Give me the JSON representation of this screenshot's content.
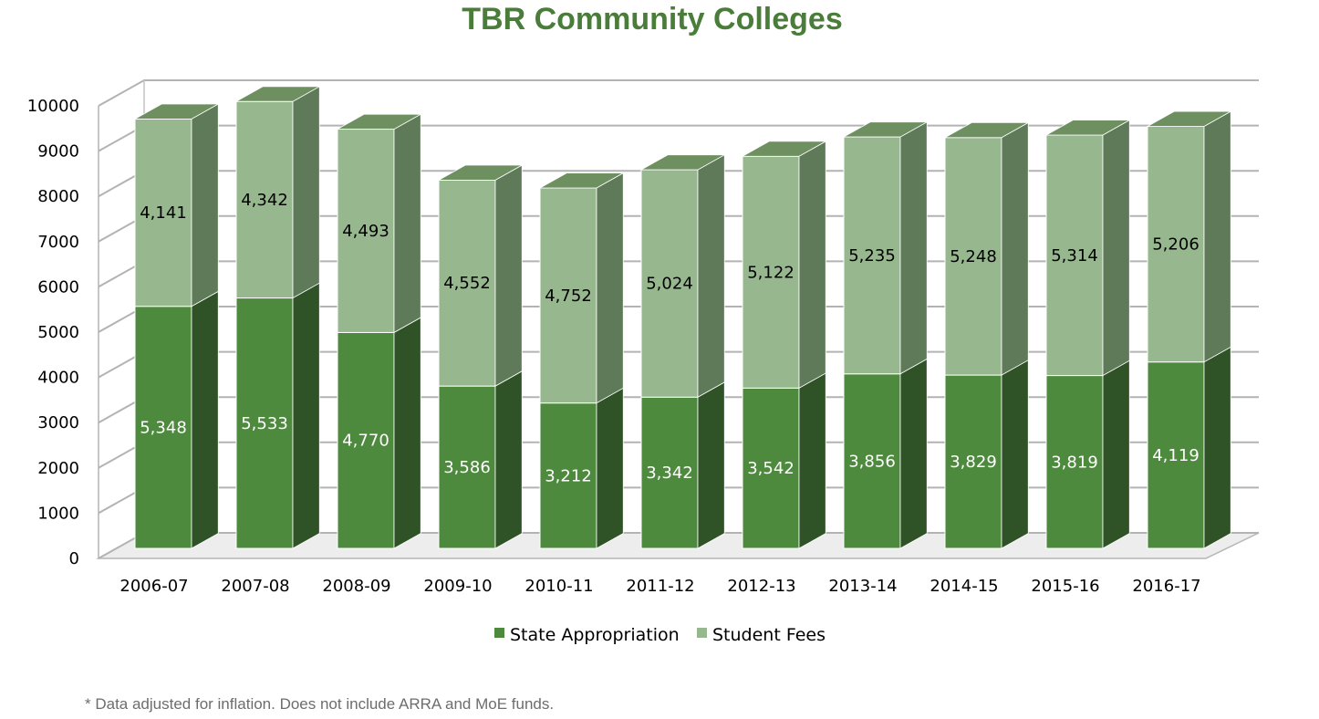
{
  "chart_data": {
    "type": "bar",
    "stacked": true,
    "three_d": true,
    "title": "TBR Community Colleges",
    "categories": [
      "2006-07",
      "2007-08",
      "2008-09",
      "2009-10",
      "2010-11",
      "2011-12",
      "2012-13",
      "2013-14",
      "2014-15",
      "2015-16",
      "2016-17"
    ],
    "series": [
      {
        "name": "State Appropriation",
        "values": [
          5348,
          5533,
          4770,
          3586,
          3212,
          3342,
          3542,
          3856,
          3829,
          3819,
          4119
        ],
        "labels": [
          "5,348",
          "5,533",
          "4,770",
          "3,586",
          "3,212",
          "3,342",
          "3,542",
          "3,856",
          "3,829",
          "3,819",
          "4,119"
        ],
        "color": "#4e8a3e",
        "side_color": "#2f5326",
        "top_color": "#6e8f60",
        "label_color": "#ffffff"
      },
      {
        "name": "Student Fees",
        "values": [
          4141,
          4342,
          4493,
          4552,
          4752,
          5024,
          5122,
          5235,
          5248,
          5314,
          5206
        ],
        "labels": [
          "4,141",
          "4,342",
          "4,493",
          "4,552",
          "4,752",
          "5,024",
          "5,122",
          "5,235",
          "5,248",
          "5,314",
          "5,206"
        ],
        "color": "#97b88e",
        "side_color": "#5f7a58",
        "top_color": "#6e8f60",
        "label_color": "#000000"
      }
    ],
    "ylim": [
      0,
      10000
    ],
    "yticks": [
      "0",
      "1000",
      "2000",
      "3000",
      "4000",
      "5000",
      "6000",
      "7000",
      "8000",
      "9000",
      "10000"
    ],
    "grid": true,
    "legend_position": "bottom",
    "xlabel": "",
    "ylabel": ""
  },
  "footnote": "* Data adjusted for inflation. Does not include ARRA and MoE funds."
}
